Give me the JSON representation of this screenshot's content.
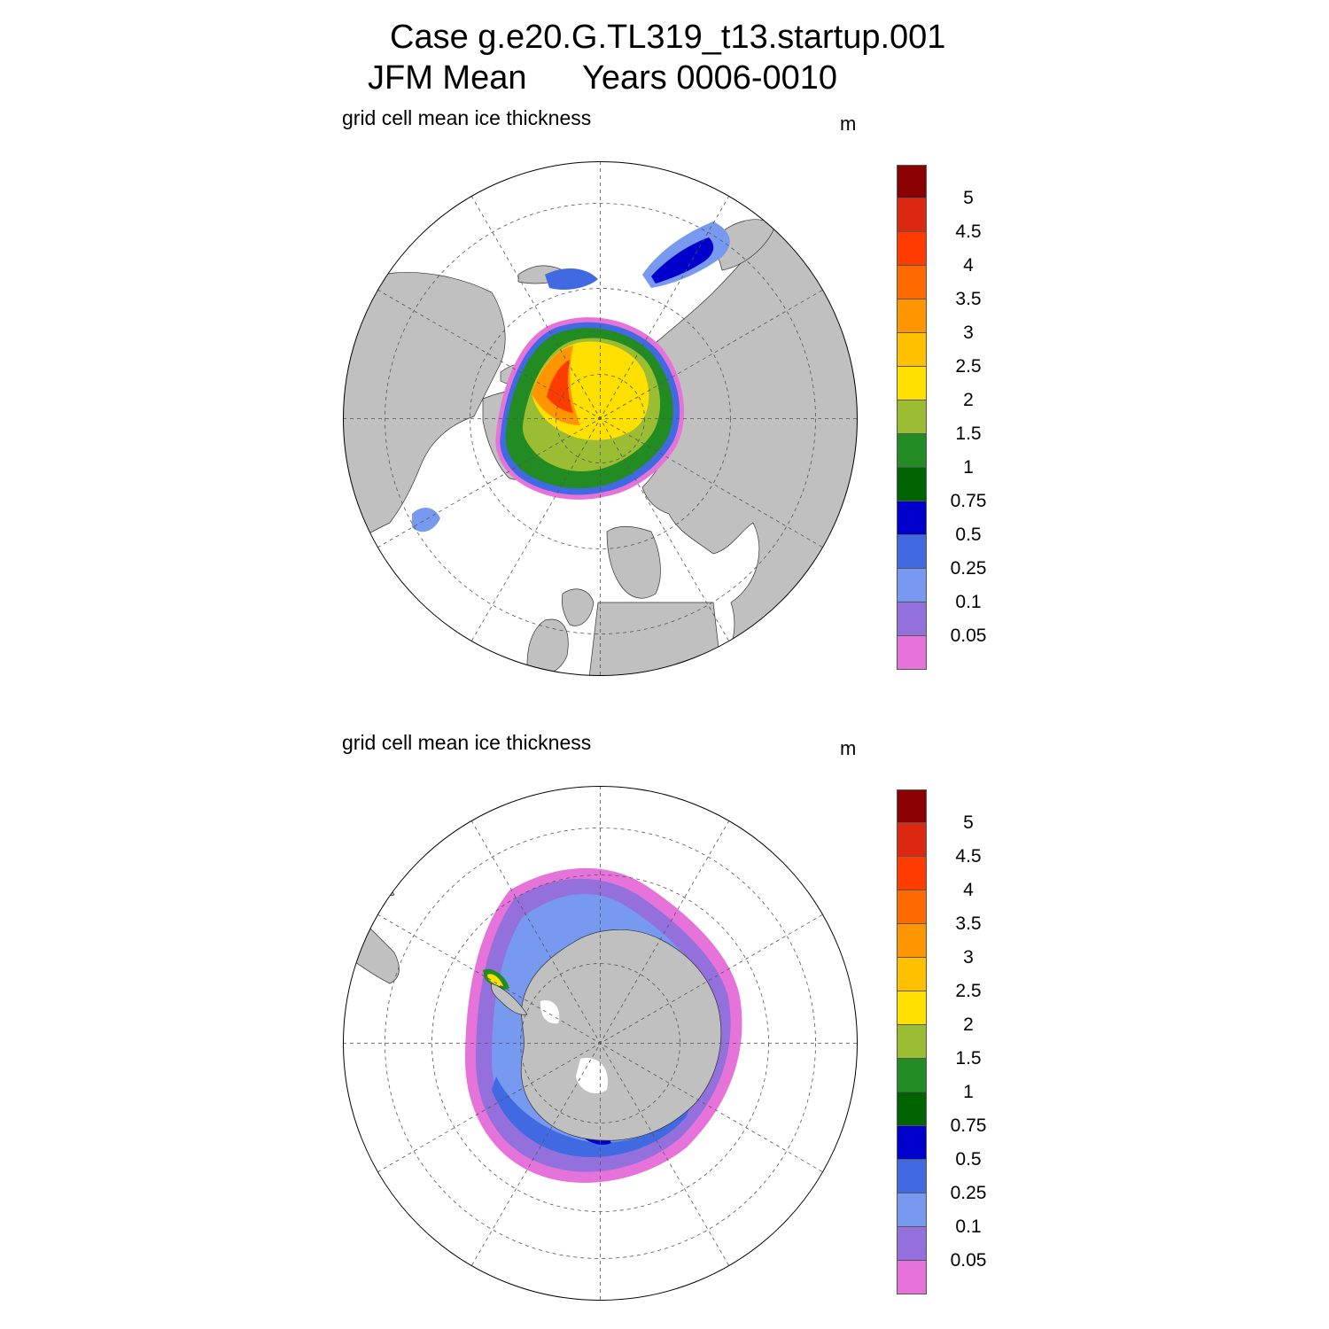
{
  "title": {
    "line1": "Case g.e20.G.TL319_t13.startup.001",
    "season": "JFM Mean",
    "years": "Years 0006-0010"
  },
  "panels": [
    {
      "hemisphere": "north",
      "variable_label": "grid cell mean ice thickness",
      "units": "m"
    },
    {
      "hemisphere": "south",
      "variable_label": "grid cell mean ice thickness",
      "units": "m"
    }
  ],
  "colorbar": {
    "levels": [
      "0.05",
      "0.1",
      "0.25",
      "0.5",
      "0.75",
      "1",
      "1.5",
      "2",
      "2.5",
      "3",
      "3.5",
      "4",
      "4.5",
      "5"
    ],
    "colors": [
      "#e673d9",
      "#9370db",
      "#7799f0",
      "#4169e1",
      "#0000cd",
      "#006400",
      "#228b22",
      "#9abd34",
      "#ffe000",
      "#ffc000",
      "#ff9500",
      "#ff6a00",
      "#ff3c00",
      "#dc2810",
      "#8b0000"
    ]
  },
  "map_colors": {
    "land": "#c0c0c0",
    "ocean": "#ffffff"
  }
}
